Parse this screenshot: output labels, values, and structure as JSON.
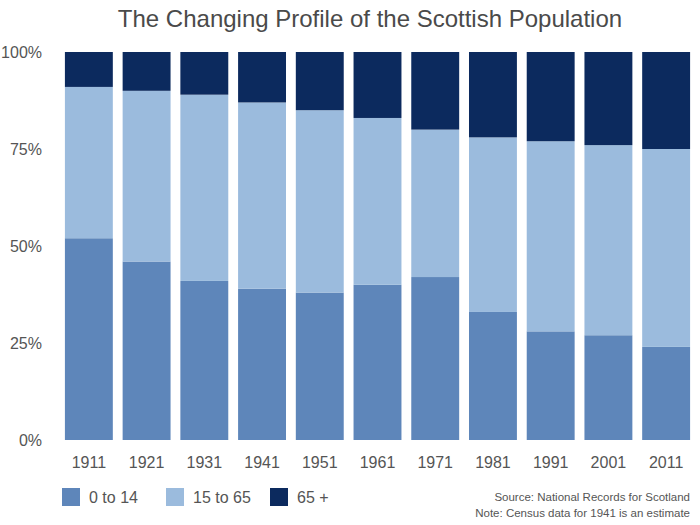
{
  "chart_data": {
    "type": "bar",
    "title": "The Changing Profile of the Scottish Population",
    "categories": [
      "1911",
      "1921",
      "1931",
      "1941",
      "1951",
      "1961",
      "1971",
      "1981",
      "1991",
      "2001",
      "2011"
    ],
    "series": [
      {
        "name": "0 to 14",
        "color": "#5e86ba",
        "values": [
          52,
          46,
          41,
          39,
          38,
          40,
          42,
          33,
          28,
          27,
          24
        ]
      },
      {
        "name": "15 to 65",
        "color": "#9bbbdd",
        "values": [
          39,
          44,
          48,
          48,
          47,
          43,
          38,
          45,
          49,
          49,
          51
        ]
      },
      {
        "name": "65 +",
        "color": "#0c2a5e",
        "values": [
          9,
          10,
          11,
          13,
          15,
          17,
          20,
          22,
          23,
          24,
          25
        ]
      }
    ],
    "stacked": true,
    "ylim": [
      0,
      100
    ],
    "yticks": [
      {
        "value": 0,
        "label": "0%"
      },
      {
        "value": 25,
        "label": "25%"
      },
      {
        "value": 50,
        "label": "50%"
      },
      {
        "value": 75,
        "label": "75%"
      },
      {
        "value": 100,
        "label": "100%"
      }
    ],
    "grid": false,
    "legend": "bottom",
    "annotations": [
      "Source: National Records for Scotland",
      "Note: Census data for 1941 is an estimate"
    ]
  }
}
